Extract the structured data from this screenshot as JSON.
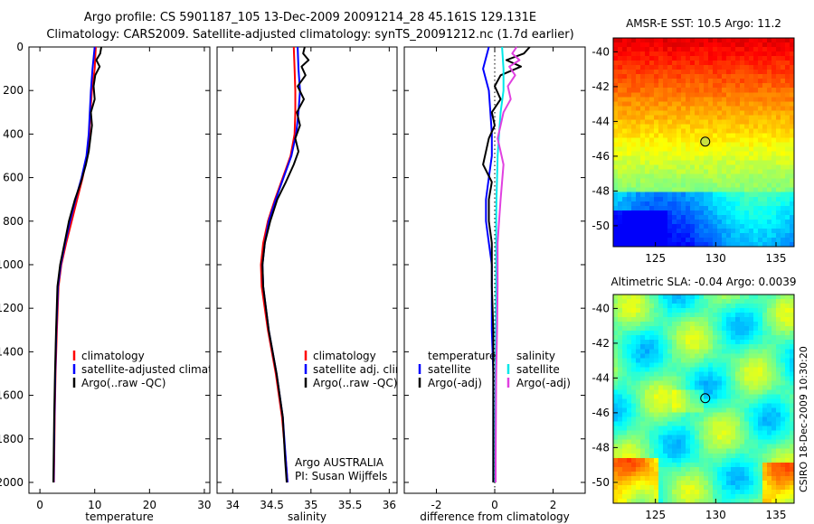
{
  "title": {
    "line1": "Argo profile: CS 5901187_105 13-Dec-2009 20091214_28 45.161S 129.131E",
    "line2": "Climatology: CARS2009. Satellite-adjusted climatology: synTS_20091212.nc (1.7d earlier)"
  },
  "side_label": "CSIRO 18-Dec-2009 10:30:20",
  "colors": {
    "climatology": "#ff0000",
    "satellite": "#0000ff",
    "argo": "#000000",
    "argo_adj": "#e040e0",
    "satellite_salinity": "#00e8e8",
    "marker": "#c8e040"
  },
  "chart_data": [
    {
      "type": "line",
      "id": "temperature",
      "xlabel": "temperature",
      "ylabel": "",
      "xlim": [
        -2,
        31
      ],
      "ylim": [
        2050,
        0
      ],
      "xticks": [
        0,
        10,
        20,
        30
      ],
      "yticks": [
        0,
        200,
        400,
        600,
        800,
        1000,
        1200,
        1400,
        1600,
        1800,
        2000
      ],
      "legend": [
        {
          "label": "climatology",
          "color": "#ff0000"
        },
        {
          "label": "satellite-adjusted climatology",
          "color": "#0000ff"
        },
        {
          "label": "Argo(..raw -QC)",
          "color": "#000000"
        }
      ],
      "series": [
        {
          "name": "climatology",
          "color": "#ff0000",
          "x": [
            10.2,
            10.0,
            9.5,
            9.2,
            9.0,
            8.6,
            7.8,
            6.8,
            5.8,
            4.8,
            3.9,
            3.4,
            3.1,
            2.85,
            2.7,
            2.6,
            2.55
          ],
          "y": [
            0,
            100,
            200,
            300,
            400,
            500,
            600,
            700,
            800,
            900,
            1000,
            1100,
            1300,
            1500,
            1700,
            1900,
            2000
          ]
        },
        {
          "name": "satellite-adjusted climatology",
          "color": "#0000ff",
          "x": [
            10.0,
            9.6,
            9.3,
            9.1,
            8.9,
            8.5,
            7.6,
            6.5,
            5.5,
            4.6,
            3.8,
            3.3,
            3.0,
            2.8,
            2.65,
            2.55,
            2.5
          ],
          "y": [
            0,
            100,
            200,
            300,
            400,
            500,
            600,
            700,
            800,
            900,
            1000,
            1100,
            1300,
            1500,
            1700,
            1900,
            2000
          ]
        },
        {
          "name": "Argo(..raw -QC)",
          "color": "#000000",
          "x": [
            11.2,
            11.0,
            10.3,
            10.9,
            10.1,
            9.8,
            10.0,
            9.3,
            9.5,
            9.2,
            8.9,
            8.4,
            7.5,
            6.4,
            5.3,
            4.5,
            3.7,
            3.2,
            2.95,
            2.75,
            2.6,
            2.5,
            2.45
          ],
          "y": [
            0,
            30,
            60,
            90,
            130,
            180,
            240,
            300,
            360,
            420,
            480,
            540,
            620,
            700,
            800,
            900,
            1000,
            1100,
            1300,
            1500,
            1700,
            1900,
            2000
          ]
        }
      ]
    },
    {
      "type": "line",
      "id": "salinity",
      "xlabel": "salinity",
      "ylabel": "",
      "xlim": [
        33.8,
        36.1
      ],
      "ylim": [
        2050,
        0
      ],
      "xticks": [
        34,
        34.5,
        35,
        35.5,
        36
      ],
      "legend": [
        {
          "label": "climatology",
          "color": "#ff0000"
        },
        {
          "label": "satellite adj. clim.",
          "color": "#0000ff"
        },
        {
          "label": "Argo(..raw -QC)",
          "color": "#000000"
        }
      ],
      "annotations": [
        "Argo AUSTRALIA",
        "PI: Susan Wijffels"
      ],
      "series": [
        {
          "name": "climatology",
          "color": "#ff0000",
          "x": [
            34.78,
            34.79,
            34.8,
            34.8,
            34.79,
            34.74,
            34.64,
            34.54,
            34.45,
            34.39,
            34.36,
            34.37,
            34.45,
            34.55,
            34.63,
            34.68,
            34.7
          ],
          "y": [
            0,
            100,
            200,
            300,
            400,
            500,
            600,
            700,
            800,
            900,
            1000,
            1100,
            1300,
            1500,
            1700,
            1900,
            2000
          ]
        },
        {
          "name": "satellite adj. clim.",
          "color": "#0000ff",
          "x": [
            34.83,
            34.84,
            34.86,
            34.84,
            34.81,
            34.75,
            34.65,
            34.55,
            34.46,
            34.41,
            34.38,
            34.39,
            34.46,
            34.56,
            34.64,
            34.68,
            34.7
          ],
          "y": [
            0,
            100,
            200,
            300,
            400,
            500,
            600,
            700,
            800,
            900,
            1000,
            1100,
            1300,
            1500,
            1700,
            1900,
            2000
          ]
        },
        {
          "name": "Argo(..raw -QC)",
          "color": "#000000",
          "x": [
            34.92,
            34.9,
            34.97,
            34.88,
            34.93,
            34.83,
            34.91,
            34.82,
            34.86,
            34.8,
            34.84,
            34.78,
            34.68,
            34.57,
            34.48,
            34.41,
            34.38,
            34.39,
            34.46,
            34.56,
            34.64,
            34.67,
            34.69
          ],
          "y": [
            0,
            30,
            60,
            90,
            130,
            180,
            240,
            300,
            360,
            420,
            480,
            540,
            620,
            700,
            800,
            900,
            1000,
            1100,
            1300,
            1500,
            1700,
            1900,
            2000
          ]
        }
      ]
    },
    {
      "type": "line",
      "id": "difference",
      "xlabel": "difference from climatology",
      "ylabel": "",
      "xlim": [
        -3.1,
        3.1
      ],
      "ylim": [
        2050,
        0
      ],
      "xticks": [
        -2,
        0,
        2
      ],
      "legend": [
        {
          "label": "temperature",
          "color": ""
        },
        {
          "label": "satellite",
          "color": "#0000ff"
        },
        {
          "label": "Argo(-adj)",
          "color": "#000000"
        },
        {
          "label": "salinity",
          "color": ""
        },
        {
          "label": "satellite",
          "color": "#00e8e8"
        },
        {
          "label": "Argo(-adj)",
          "color": "#e040e0"
        }
      ],
      "series": [
        {
          "name": "temperature satellite",
          "color": "#0000ff",
          "x": [
            -0.2,
            -0.4,
            -0.2,
            -0.15,
            -0.1,
            -0.1,
            -0.2,
            -0.3,
            -0.3,
            -0.2,
            -0.1,
            -0.1,
            -0.1,
            -0.05,
            -0.05,
            -0.05,
            -0.05
          ],
          "y": [
            0,
            100,
            200,
            300,
            400,
            500,
            600,
            700,
            800,
            900,
            1000,
            1100,
            1300,
            1500,
            1700,
            1900,
            2000
          ]
        },
        {
          "name": "temperature Argo(-adj)",
          "color": "#000000",
          "x": [
            1.2,
            1.0,
            0.4,
            0.9,
            0.2,
            0.0,
            0.2,
            -0.1,
            0.0,
            -0.2,
            -0.3,
            -0.4,
            -0.1,
            -0.2,
            -0.2,
            -0.1,
            -0.1,
            -0.1,
            -0.05,
            -0.05,
            -0.05,
            -0.05,
            -0.05
          ],
          "y": [
            0,
            30,
            60,
            90,
            130,
            180,
            240,
            300,
            360,
            420,
            480,
            540,
            620,
            700,
            800,
            900,
            1000,
            1100,
            1300,
            1500,
            1700,
            1900,
            2000
          ]
        },
        {
          "name": "salinity satellite",
          "color": "#00e8e8",
          "x": [
            0.25,
            0.3,
            0.3,
            0.2,
            0.15,
            0.1,
            0.08,
            0.06,
            0.05,
            0.05,
            0.05,
            0.05,
            0.04,
            0.03,
            0.02,
            0.02,
            0.02
          ],
          "y": [
            0,
            100,
            200,
            300,
            400,
            500,
            600,
            700,
            800,
            900,
            1000,
            1100,
            1300,
            1500,
            1700,
            1900,
            2000
          ]
        },
        {
          "name": "salinity Argo(-adj)",
          "color": "#e040e0",
          "x": [
            0.75,
            0.6,
            0.85,
            0.5,
            0.7,
            0.45,
            0.55,
            0.3,
            0.2,
            0.1,
            0.2,
            0.3,
            0.25,
            0.2,
            0.15,
            0.1,
            0.1,
            0.1,
            0.08,
            0.05,
            0.04,
            0.03,
            0.03
          ],
          "y": [
            0,
            30,
            60,
            90,
            130,
            180,
            240,
            300,
            360,
            420,
            480,
            540,
            620,
            700,
            800,
            900,
            1000,
            1100,
            1300,
            1500,
            1700,
            1900,
            2000
          ]
        }
      ]
    },
    {
      "type": "heatmap",
      "id": "sst_map",
      "title": "AMSR-E SST: 10.5 Argo: 11.2",
      "xlim": [
        121.5,
        136.5
      ],
      "ylim": [
        -51.2,
        -39.2
      ],
      "xticks": [
        125,
        130,
        135
      ],
      "yticks": [
        -40,
        -42,
        -44,
        -46,
        -48,
        -50
      ],
      "marker": {
        "lon": 129.131,
        "lat": -45.161
      }
    },
    {
      "type": "heatmap",
      "id": "sla_map",
      "title": "Altimetric SLA: -0.04 Argo: 0.0039",
      "xlim": [
        121.5,
        136.5
      ],
      "ylim": [
        -51.2,
        -39.2
      ],
      "xticks": [
        125,
        130,
        135
      ],
      "yticks": [
        -40,
        -42,
        -44,
        -46,
        -48,
        -50
      ],
      "marker": {
        "lon": 129.131,
        "lat": -45.161
      }
    }
  ]
}
